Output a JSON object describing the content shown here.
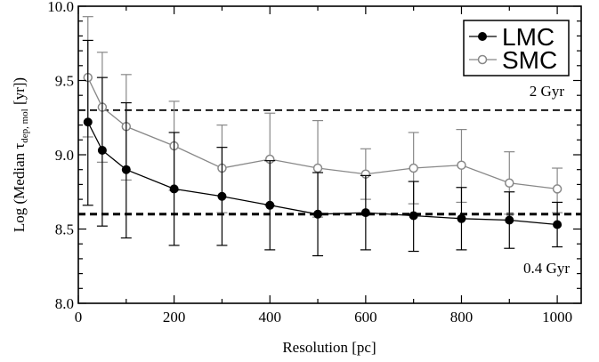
{
  "chart_data": {
    "type": "line",
    "xlabel": "Resolution [pc]",
    "ylabel": {
      "pre": "Log (Median ",
      "tau": "τ",
      "sub": "dep, mol",
      "post": " [yr])"
    },
    "xlim": [
      0,
      1050
    ],
    "ylim": [
      8.0,
      10.0
    ],
    "xticks": [
      0,
      200,
      400,
      600,
      800,
      1000
    ],
    "yticks": [
      8.0,
      8.5,
      9.0,
      9.5,
      10.0
    ],
    "ytick_labels": [
      "8.0",
      "8.5",
      "9.0",
      "9.5",
      "10.0"
    ],
    "grid": false,
    "legend_position": "top-right",
    "reference_lines": [
      {
        "y": 9.3,
        "label": "2 Gyr",
        "style": "dashed"
      },
      {
        "y": 8.6,
        "label": "0.4 Gyr",
        "style": "dashed-thick"
      }
    ],
    "series": [
      {
        "name": "LMC",
        "color": "#000000",
        "marker": "filled-circle",
        "x": [
          20,
          50,
          100,
          200,
          300,
          400,
          500,
          600,
          700,
          800,
          900,
          1000
        ],
        "y": [
          9.22,
          9.03,
          8.9,
          8.77,
          8.72,
          8.66,
          8.6,
          8.61,
          8.59,
          8.57,
          8.56,
          8.53
        ],
        "err_low": [
          8.66,
          8.52,
          8.44,
          8.39,
          8.39,
          8.36,
          8.32,
          8.36,
          8.35,
          8.36,
          8.37,
          8.38
        ],
        "err_high": [
          9.77,
          9.52,
          9.35,
          9.15,
          9.05,
          8.96,
          8.88,
          8.86,
          8.82,
          8.78,
          8.75,
          8.68
        ]
      },
      {
        "name": "SMC",
        "color": "#888888",
        "marker": "open-circle",
        "x": [
          20,
          50,
          100,
          200,
          300,
          400,
          500,
          600,
          700,
          800,
          900,
          1000
        ],
        "y": [
          9.52,
          9.32,
          9.19,
          9.06,
          8.91,
          8.97,
          8.91,
          8.87,
          8.91,
          8.93,
          8.81,
          8.77
        ],
        "err_low": [
          9.12,
          8.95,
          8.83,
          8.76,
          8.61,
          8.66,
          8.58,
          8.7,
          8.67,
          8.68,
          8.6,
          8.61
        ],
        "err_high": [
          9.93,
          9.69,
          9.54,
          9.36,
          9.2,
          9.28,
          9.23,
          9.04,
          9.15,
          9.17,
          9.02,
          8.91
        ]
      }
    ]
  }
}
